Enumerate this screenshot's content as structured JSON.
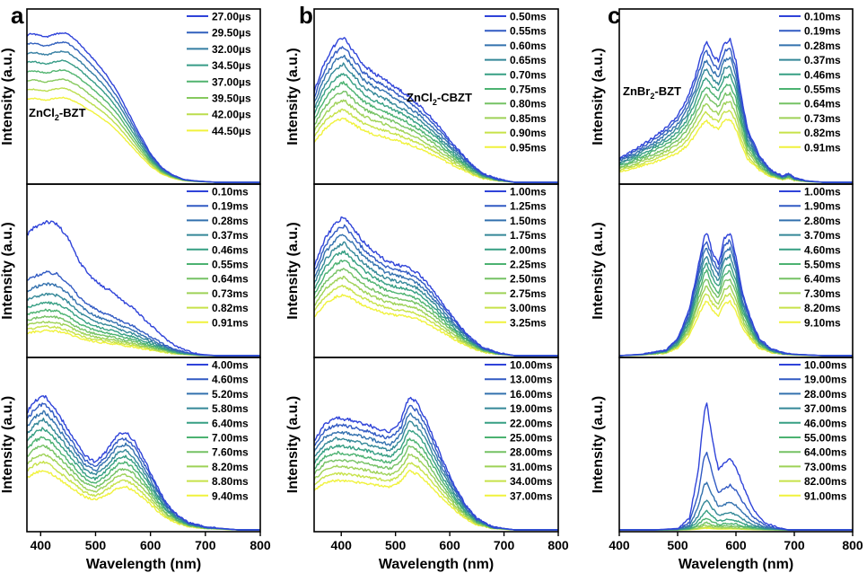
{
  "figure": {
    "color_start": "#2f43d9",
    "color_end": "#f0f23c"
  },
  "chart_data": [
    {
      "panel_letter": "a",
      "x_label": "Wavelength (nm)",
      "xlim": [
        375,
        800
      ],
      "x_ticks": [
        400,
        500,
        600,
        700,
        800
      ],
      "rows": [
        {
          "type": "line",
          "y_label": "Intensity (a.u.)",
          "annotation": {
            "main": "ZnCl",
            "sub": "2",
            "rest": "-BZT"
          },
          "series": [
            {
              "name": "27.00µs"
            },
            {
              "name": "29.50µs"
            },
            {
              "name": "32.00µs"
            },
            {
              "name": "34.50µs"
            },
            {
              "name": "37.00µs"
            },
            {
              "name": "39.50µs"
            },
            {
              "name": "42.00µs"
            },
            {
              "name": "44.50µs"
            }
          ],
          "shape": {
            "x": [
              375,
              380,
              390,
              400,
              410,
              425,
              440,
              450,
              460,
              470,
              480,
              500,
              520,
              540,
              560,
              580,
              600,
              620,
              640,
              660,
              680,
              700,
              720,
              750,
              800
            ],
            "y": [
              0.97,
              0.98,
              0.98,
              0.97,
              0.96,
              0.98,
              0.99,
              0.98,
              0.95,
              0.92,
              0.88,
              0.8,
              0.71,
              0.6,
              0.46,
              0.32,
              0.19,
              0.1,
              0.05,
              0.02,
              0.01,
              0.005,
              0.0,
              0.0,
              0.0
            ]
          }
        },
        {
          "type": "line",
          "y_label": "Intensity (a.u.)",
          "series": [
            {
              "name": "0.10ms"
            },
            {
              "name": "0.19ms"
            },
            {
              "name": "0.28ms"
            },
            {
              "name": "0.37ms"
            },
            {
              "name": "0.46ms"
            },
            {
              "name": "0.55ms"
            },
            {
              "name": "0.64ms"
            },
            {
              "name": "0.73ms"
            },
            {
              "name": "0.82ms"
            },
            {
              "name": "0.91ms"
            }
          ],
          "shape": {
            "x": [
              375,
              390,
              410,
              430,
              450,
              470,
              490,
              510,
              530,
              550,
              570,
              590,
              610,
              630,
              650,
              670,
              690,
              720,
              800
            ],
            "y": [
              0.85,
              0.9,
              0.94,
              0.92,
              0.82,
              0.66,
              0.56,
              0.49,
              0.45,
              0.38,
              0.33,
              0.25,
              0.18,
              0.11,
              0.06,
              0.03,
              0.01,
              0.0,
              0.0
            ]
          }
        },
        {
          "type": "line",
          "y_label": "Intensity (a.u.)",
          "series": [
            {
              "name": "4.00ms"
            },
            {
              "name": "4.60ms"
            },
            {
              "name": "5.20ms"
            },
            {
              "name": "5.80ms"
            },
            {
              "name": "6.40ms"
            },
            {
              "name": "7.00ms"
            },
            {
              "name": "7.60ms"
            },
            {
              "name": "8.20ms"
            },
            {
              "name": "8.80ms"
            },
            {
              "name": "9.40ms"
            }
          ],
          "shape": {
            "x": [
              375,
              390,
              405,
              420,
              440,
              460,
              480,
              500,
              520,
              540,
              555,
              570,
              590,
              610,
              630,
              650,
              670,
              700,
              730,
              760,
              800
            ],
            "y": [
              0.82,
              0.9,
              0.94,
              0.88,
              0.76,
              0.64,
              0.52,
              0.47,
              0.55,
              0.66,
              0.68,
              0.62,
              0.48,
              0.32,
              0.18,
              0.1,
              0.05,
              0.02,
              0.01,
              0.0,
              0.0
            ]
          }
        }
      ]
    },
    {
      "panel_letter": "b",
      "x_label": "Wavelength (nm)",
      "xlim": [
        350,
        800
      ],
      "x_ticks": [
        400,
        500,
        600,
        700,
        800
      ],
      "rows": [
        {
          "type": "line",
          "y_label": "Intensity (a.u.)",
          "annotation": {
            "main": "ZnCl",
            "sub": "2",
            "rest": "-CBZT"
          },
          "series": [
            {
              "name": "0.50ms"
            },
            {
              "name": "0.55ms"
            },
            {
              "name": "0.60ms"
            },
            {
              "name": "0.65ms"
            },
            {
              "name": "0.70ms"
            },
            {
              "name": "0.75ms"
            },
            {
              "name": "0.80ms"
            },
            {
              "name": "0.85ms"
            },
            {
              "name": "0.90ms"
            },
            {
              "name": "0.95ms"
            }
          ],
          "shape": {
            "x": [
              350,
              370,
              390,
              405,
              420,
              440,
              460,
              480,
              500,
              520,
              540,
              560,
              580,
              600,
              620,
              640,
              660,
              690,
              720,
              800
            ],
            "y": [
              0.6,
              0.8,
              0.92,
              0.96,
              0.88,
              0.78,
              0.72,
              0.68,
              0.63,
              0.58,
              0.52,
              0.45,
              0.37,
              0.28,
              0.2,
              0.12,
              0.06,
              0.02,
              0.0,
              0.0
            ]
          }
        },
        {
          "type": "line",
          "y_label": "Intensity (a.u.)",
          "series": [
            {
              "name": "1.00ms"
            },
            {
              "name": "1.25ms"
            },
            {
              "name": "1.50ms"
            },
            {
              "name": "1.75ms"
            },
            {
              "name": "2.00ms"
            },
            {
              "name": "2.25ms"
            },
            {
              "name": "2.50ms"
            },
            {
              "name": "2.75ms"
            },
            {
              "name": "3.00ms"
            },
            {
              "name": "3.25ms"
            }
          ],
          "shape": {
            "x": [
              350,
              370,
              390,
              405,
              420,
              440,
              460,
              480,
              500,
              520,
              540,
              560,
              580,
              600,
              620,
              640,
              660,
              690,
              720,
              800
            ],
            "y": [
              0.62,
              0.82,
              0.93,
              0.97,
              0.9,
              0.8,
              0.73,
              0.67,
              0.64,
              0.62,
              0.58,
              0.5,
              0.4,
              0.3,
              0.2,
              0.12,
              0.06,
              0.02,
              0.0,
              0.0
            ]
          }
        },
        {
          "type": "line",
          "y_label": "Intensity (a.u.)",
          "series": [
            {
              "name": "10.00ms"
            },
            {
              "name": "13.00ms"
            },
            {
              "name": "16.00ms"
            },
            {
              "name": "19.00ms"
            },
            {
              "name": "22.00ms"
            },
            {
              "name": "25.00ms"
            },
            {
              "name": "28.00ms"
            },
            {
              "name": "31.00ms"
            },
            {
              "name": "34.00ms"
            },
            {
              "name": "37.00ms"
            }
          ],
          "shape": {
            "x": [
              350,
              370,
              390,
              410,
              430,
              450,
              470,
              490,
              510,
              525,
              540,
              555,
              570,
              590,
              610,
              630,
              650,
              680,
              720,
              800
            ],
            "y": [
              0.62,
              0.74,
              0.78,
              0.77,
              0.75,
              0.73,
              0.7,
              0.68,
              0.76,
              0.93,
              0.88,
              0.78,
              0.64,
              0.46,
              0.3,
              0.17,
              0.08,
              0.02,
              0.0,
              0.0
            ]
          }
        }
      ]
    },
    {
      "panel_letter": "c",
      "x_label": "Wavelength (nm)",
      "xlim": [
        400,
        800
      ],
      "x_ticks": [
        400,
        500,
        600,
        700,
        800
      ],
      "rows": [
        {
          "type": "line",
          "y_label": "Intensity (a.u.)",
          "annotation": {
            "main": "ZnBr",
            "sub": "2",
            "rest": "-BZT"
          },
          "series": [
            {
              "name": "0.10ms"
            },
            {
              "name": "0.19ms"
            },
            {
              "name": "0.28ms"
            },
            {
              "name": "0.37ms"
            },
            {
              "name": "0.46ms"
            },
            {
              "name": "0.55ms"
            },
            {
              "name": "0.64ms"
            },
            {
              "name": "0.73ms"
            },
            {
              "name": "0.82ms"
            },
            {
              "name": "0.91ms"
            }
          ],
          "shape": {
            "x": [
              400,
              420,
              440,
              460,
              480,
              500,
              515,
              530,
              545,
              550,
              560,
              570,
              580,
              590,
              600,
              610,
              620,
              640,
              660,
              680,
              690,
              700,
              720,
              750,
              800
            ],
            "y": [
              0.16,
              0.2,
              0.25,
              0.3,
              0.36,
              0.44,
              0.54,
              0.7,
              0.9,
              0.92,
              0.84,
              0.8,
              0.92,
              0.94,
              0.8,
              0.55,
              0.35,
              0.18,
              0.08,
              0.04,
              0.06,
              0.03,
              0.01,
              0.0,
              0.0
            ]
          }
        },
        {
          "type": "line",
          "y_label": "Intensity (a.u.)",
          "series": [
            {
              "name": "1.00ms"
            },
            {
              "name": "1.90ms"
            },
            {
              "name": "2.80ms"
            },
            {
              "name": "3.70ms"
            },
            {
              "name": "4.60ms"
            },
            {
              "name": "5.50ms"
            },
            {
              "name": "6.40ms"
            },
            {
              "name": "7.30ms"
            },
            {
              "name": "8.20ms"
            },
            {
              "name": "9.10ms"
            }
          ],
          "shape": {
            "x": [
              400,
              440,
              480,
              500,
              520,
              535,
              545,
              550,
              560,
              570,
              580,
              590,
              600,
              610,
              625,
              640,
              660,
              680,
              700,
              750,
              800
            ],
            "y": [
              0.0,
              0.01,
              0.04,
              0.12,
              0.32,
              0.62,
              0.82,
              0.86,
              0.72,
              0.64,
              0.82,
              0.86,
              0.7,
              0.46,
              0.26,
              0.12,
              0.05,
              0.02,
              0.01,
              0.0,
              0.0
            ]
          }
        },
        {
          "type": "line",
          "y_label": "Intensity (a.u.)",
          "series": [
            {
              "name": "10.00ms"
            },
            {
              "name": "19.00ms"
            },
            {
              "name": "28.00ms"
            },
            {
              "name": "37.00ms"
            },
            {
              "name": "46.00ms"
            },
            {
              "name": "55.00ms"
            },
            {
              "name": "64.00ms"
            },
            {
              "name": "73.00ms"
            },
            {
              "name": "82.00ms"
            },
            {
              "name": "91.00ms"
            }
          ],
          "shape": {
            "x": [
              400,
              460,
              500,
              520,
              535,
              545,
              550,
              560,
              570,
              580,
              590,
              600,
              615,
              630,
              650,
              670,
              690,
              720,
              800
            ],
            "y": [
              0.0,
              0.0,
              0.01,
              0.08,
              0.4,
              0.8,
              0.88,
              0.62,
              0.42,
              0.46,
              0.5,
              0.44,
              0.28,
              0.14,
              0.05,
              0.02,
              0.0,
              0.0,
              0.0
            ]
          }
        }
      ]
    }
  ]
}
